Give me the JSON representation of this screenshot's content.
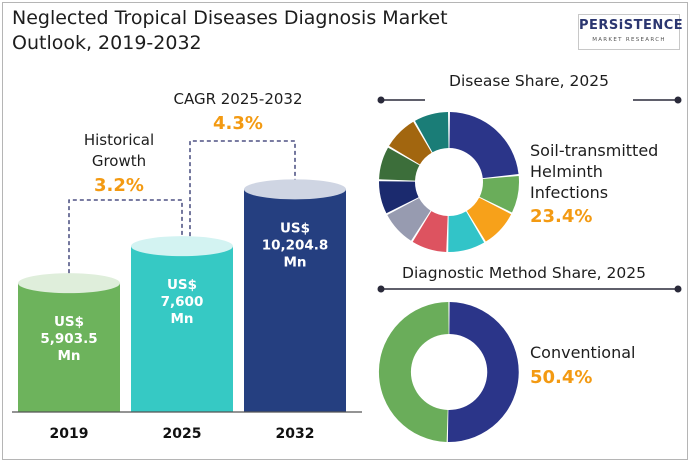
{
  "title_line1": "Neglected Tropical Diseases Diagnosis Market",
  "title_line2": "Outlook, 2019-2032",
  "logo": {
    "brand": "PERSiSTENCE",
    "tagline": "MARKET RESEARCH"
  },
  "chart_data": [
    {
      "type": "bar",
      "categories": [
        "2019",
        "2025",
        "2032"
      ],
      "values": [
        5903.5,
        7600,
        10204.8
      ],
      "value_labels": [
        [
          "US$",
          "5,903.5",
          "Mn"
        ],
        [
          "US$",
          "7,600",
          "Mn"
        ],
        [
          "US$",
          "10,204.8",
          "Mn"
        ]
      ],
      "colors": [
        "#6db35c",
        "#36c9c4",
        "#253f80"
      ],
      "annotations": [
        {
          "label_lines": [
            "Historical",
            "Growth"
          ],
          "value": "3.2%"
        },
        {
          "label_lines": [
            "CAGR 2025-2032"
          ],
          "value": "4.3%"
        }
      ]
    },
    {
      "type": "pie",
      "title": "Disease Share, 2025",
      "highlight_label_lines": [
        "Soil-transmitted",
        "Helminth",
        "Infections"
      ],
      "highlight_value": "23.4%",
      "slices": [
        {
          "value": 23.4,
          "color": "#2b3589"
        },
        {
          "value": 9.0,
          "color": "#6aad5a"
        },
        {
          "value": 9.0,
          "color": "#f7a11a"
        },
        {
          "value": 9.0,
          "color": "#32c4c8"
        },
        {
          "value": 8.5,
          "color": "#dd5360"
        },
        {
          "value": 8.5,
          "color": "#979bb0"
        },
        {
          "value": 8.0,
          "color": "#1b2a6e"
        },
        {
          "value": 8.0,
          "color": "#3c6e3a"
        },
        {
          "value": 8.3,
          "color": "#a2660f"
        },
        {
          "value": 8.3,
          "color": "#1a7d77"
        }
      ]
    },
    {
      "type": "pie",
      "title": "Diagnostic Method Share, 2025",
      "highlight_label_lines": [
        "Conventional"
      ],
      "highlight_value": "50.4%",
      "slices": [
        {
          "value": 50.4,
          "color": "#2b3589"
        },
        {
          "value": 49.6,
          "color": "#6aad5a"
        }
      ]
    }
  ],
  "colors": {
    "accent_orange": "#f39a12",
    "text_dark": "#1d1d1d"
  }
}
